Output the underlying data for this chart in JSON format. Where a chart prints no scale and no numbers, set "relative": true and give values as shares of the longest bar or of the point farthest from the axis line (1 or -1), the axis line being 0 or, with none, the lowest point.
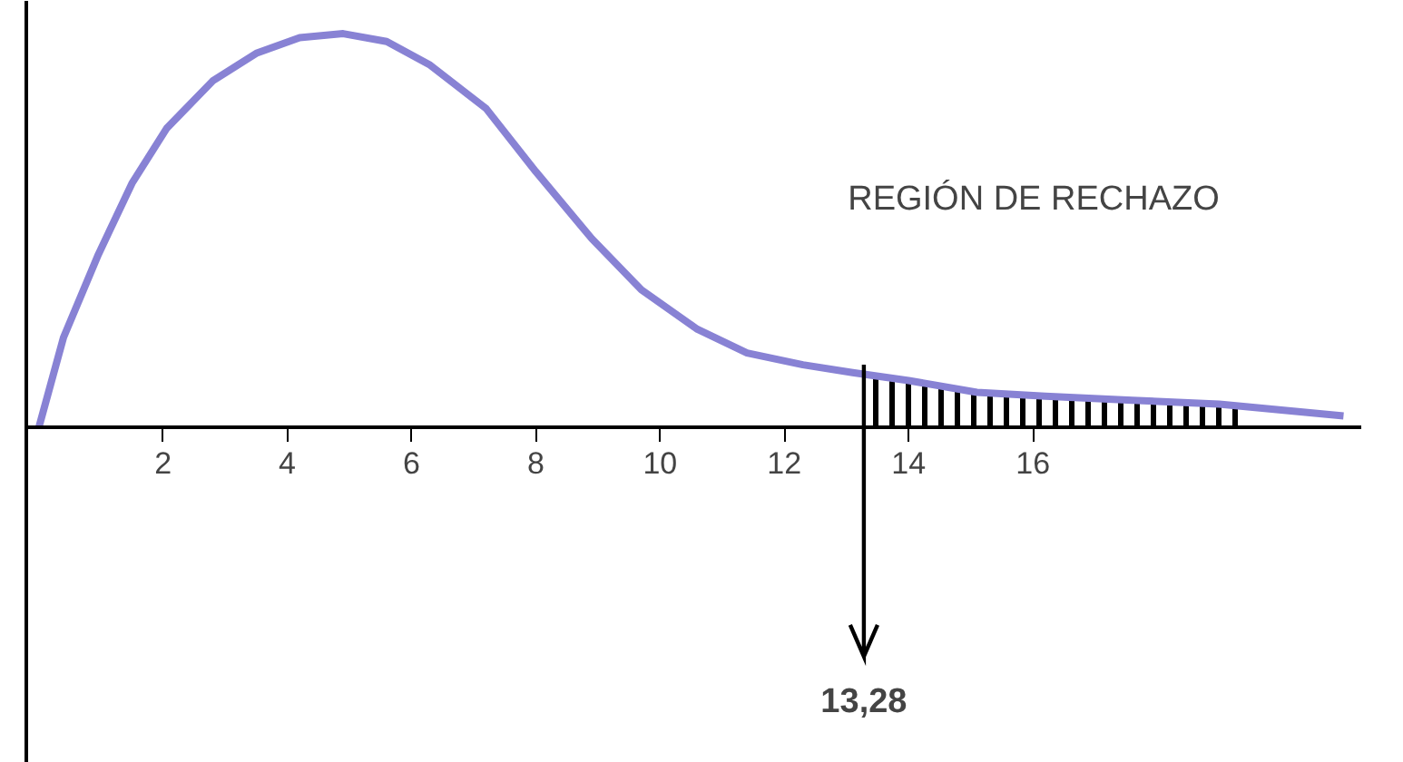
{
  "chart_data": {
    "type": "line",
    "relative": true,
    "x": [
      0,
      0.4,
      0.96,
      1.5,
      2.06,
      2.8,
      3.5,
      4.2,
      4.9,
      5.6,
      6.3,
      7.2,
      8.0,
      8.9,
      9.7,
      10.6,
      11.4,
      12.3,
      13.1,
      14.0,
      15.1,
      16.2,
      17.6,
      19.0,
      21.0
    ],
    "series": [
      {
        "color": "#8882d4",
        "values": [
          0,
          0.23,
          0.44,
          0.62,
          0.76,
          0.88,
          0.95,
          0.99,
          1,
          0.98,
          0.92,
          0.81,
          0.65,
          0.48,
          0.35,
          0.25,
          0.19,
          0.16,
          0.14,
          0.12,
          0.09,
          0.08,
          0.07,
          0.06,
          0.03
        ]
      },
      {
        "type": "area",
        "color": "#000000",
        "x": [
          13.28,
          14.0,
          15.1,
          16.2,
          17.6,
          19.0,
          19.4
        ],
        "values": [
          0.135,
          0.12,
          0.09,
          0.08,
          0.07,
          0.06,
          0.058
        ]
      }
    ],
    "xlim": [
      -0.2,
      21.3
    ],
    "xticks": [
      2,
      4,
      6,
      8,
      10,
      12,
      14,
      16
    ],
    "annotations": [
      "REGIÓN DE RECHAZO"
    ],
    "ref_lines": [
      {
        "axis": "x",
        "value": 13.28,
        "label": "13,28"
      }
    ],
    "grid": false,
    "marker": "none",
    "line_style": "solid"
  }
}
